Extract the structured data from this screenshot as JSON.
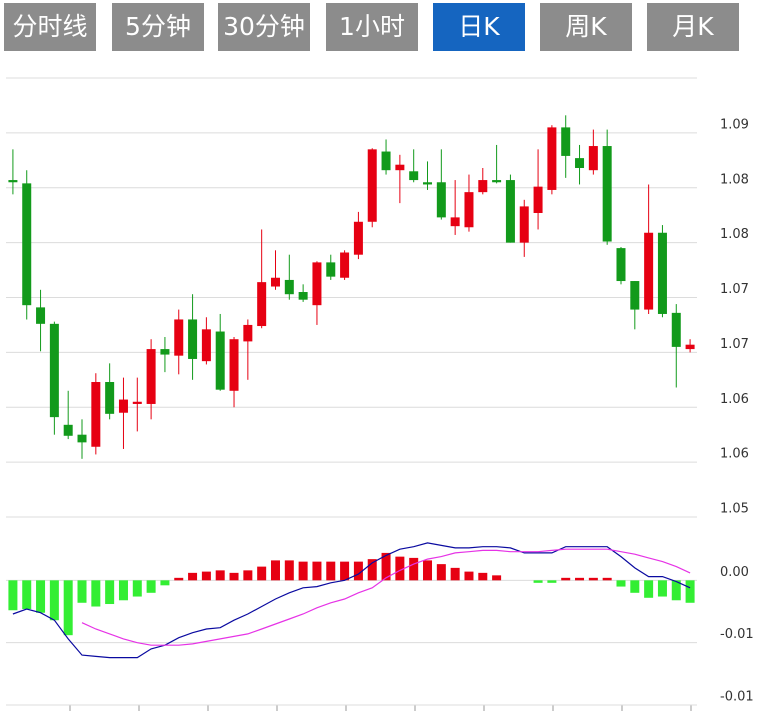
{
  "tabs": [
    "分时线",
    "5分钟",
    "30分钟",
    "1小时",
    "日K",
    "周K",
    "月K"
  ],
  "active_tab": 4,
  "chart_data": [
    {
      "type": "candlestick",
      "up_color": "#e60012",
      "down_color": "#129a1b",
      "open": [
        1.0832,
        1.0829,
        1.0716,
        1.0701,
        1.0609,
        1.06,
        1.0589,
        1.0648,
        1.062,
        1.0628,
        1.0628,
        1.0678,
        1.0672,
        1.0705,
        1.0667,
        1.0694,
        1.064,
        1.0685,
        1.0699,
        1.0735,
        1.0741,
        1.073,
        1.0718,
        1.0757,
        1.0743,
        1.0764,
        1.0794,
        1.0858,
        1.0841,
        1.084,
        1.083,
        1.083,
        1.079,
        1.0789,
        1.0821,
        1.0832,
        1.0832,
        1.0775,
        1.0802,
        1.0823,
        1.088,
        1.0852,
        1.0841,
        1.0863,
        1.077,
        1.074,
        1.0714,
        1.0784,
        1.0711,
        1.0678
      ],
      "close": [
        1.083,
        1.0718,
        1.0701,
        1.0616,
        1.0599,
        1.0593,
        1.0648,
        1.0619,
        1.0632,
        1.063,
        1.0678,
        1.0673,
        1.0705,
        1.0669,
        1.0696,
        1.0641,
        1.0687,
        1.07,
        1.0739,
        1.0743,
        1.0728,
        1.0723,
        1.0757,
        1.0744,
        1.0766,
        1.0794,
        1.086,
        1.0841,
        1.0846,
        1.0832,
        1.0828,
        1.0798,
        1.0798,
        1.0821,
        1.0832,
        1.083,
        1.0775,
        1.0808,
        1.0826,
        1.088,
        1.0854,
        1.0843,
        1.0863,
        1.0776,
        1.074,
        1.0714,
        1.0784,
        1.071,
        1.068,
        1.0682
      ],
      "high": [
        1.086,
        1.0841,
        1.0732,
        1.0703,
        1.064,
        1.0614,
        1.0656,
        1.0665,
        1.0652,
        1.0652,
        1.0687,
        1.0689,
        1.0714,
        1.0728,
        1.0707,
        1.071,
        1.0689,
        1.0705,
        1.0787,
        1.0768,
        1.0764,
        1.0737,
        1.0758,
        1.0764,
        1.0768,
        1.0803,
        1.0861,
        1.0869,
        1.0855,
        1.086,
        1.0849,
        1.086,
        1.0832,
        1.0837,
        1.0843,
        1.0864,
        1.0837,
        1.0814,
        1.086,
        1.0882,
        1.0891,
        1.0864,
        1.0878,
        1.0878,
        1.0771,
        1.074,
        1.0828,
        1.0791,
        1.0719,
        1.0687
      ],
      "low": [
        1.0819,
        1.0705,
        1.0676,
        1.06,
        1.0596,
        1.0578,
        1.0582,
        1.0614,
        1.0587,
        1.0603,
        1.0614,
        1.0657,
        1.0655,
        1.065,
        1.0664,
        1.064,
        1.0625,
        1.065,
        1.0697,
        1.0732,
        1.0723,
        1.0721,
        1.07,
        1.0741,
        1.0741,
        1.076,
        1.0789,
        1.0837,
        1.0811,
        1.083,
        1.0823,
        1.0796,
        1.0782,
        1.0785,
        1.0819,
        1.0829,
        1.0775,
        1.0762,
        1.0787,
        1.0819,
        1.0834,
        1.0828,
        1.0837,
        1.0773,
        1.0737,
        1.0696,
        1.071,
        1.0707,
        1.0643,
        1.0675
      ],
      "ylim": [
        1.0525,
        1.0925
      ],
      "yticks": [
        {
          "value": 1.0875,
          "label": "1.09"
        },
        {
          "value": 1.0825,
          "label": "1.08"
        },
        {
          "value": 1.0775,
          "label": "1.08"
        },
        {
          "value": 1.0725,
          "label": "1.07"
        },
        {
          "value": 1.0675,
          "label": "1.07"
        },
        {
          "value": 1.0625,
          "label": "1.06"
        },
        {
          "value": 1.0575,
          "label": "1.06"
        },
        {
          "value": 1.0525,
          "label": "1.05"
        }
      ],
      "grid": true
    },
    {
      "type": "macd",
      "up_color": "#e60012",
      "down_color": "#33ee33",
      "dif_color": "#0a0aa0",
      "dea_color": "#e633e6",
      "histogram": [
        -0.0024,
        -0.0023,
        -0.0026,
        -0.0032,
        -0.0044,
        -0.0018,
        -0.0021,
        -0.0019,
        -0.0016,
        -0.0013,
        -0.001,
        -0.0004,
        0.0002,
        0.0006,
        0.0007,
        0.0008,
        0.0006,
        0.0008,
        0.0011,
        0.0016,
        0.0016,
        0.0015,
        0.0015,
        0.0015,
        0.0015,
        0.0015,
        0.0017,
        0.0022,
        0.0019,
        0.0018,
        0.0016,
        0.0013,
        0.001,
        0.0007,
        0.0006,
        0.0004,
        0,
        0,
        -0.0002,
        -0.0002,
        0.0002,
        0.0002,
        0.0002,
        0.0002,
        -0.0005,
        -0.001,
        -0.0014,
        -0.0013,
        -0.0016,
        -0.0018
      ],
      "dif": [
        -0.0027,
        -0.0023,
        -0.0026,
        -0.0032,
        -0.0047,
        -0.006,
        -0.0061,
        -0.0062,
        -0.0062,
        -0.0062,
        -0.0055,
        -0.0052,
        -0.0046,
        -0.0042,
        -0.0039,
        -0.0038,
        -0.0032,
        -0.0027,
        -0.0021,
        -0.0015,
        -0.001,
        -0.0006,
        -0.0005,
        -0.0002,
        0,
        0.0005,
        0.0014,
        0.002,
        0.0025,
        0.0027,
        0.003,
        0.0028,
        0.0026,
        0.0026,
        0.0027,
        0.0027,
        0.0026,
        0.0022,
        0.0022,
        0.0022,
        0.0027,
        0.0027,
        0.0027,
        0.0027,
        0.0019,
        0.001,
        0.0003,
        0.0003,
        -0.0001,
        -0.0006
      ],
      "dea": [
        null,
        null,
        null,
        null,
        null,
        -0.0034,
        -0.0039,
        -0.0043,
        -0.0047,
        -0.005,
        -0.0052,
        -0.0052,
        -0.0052,
        -0.0051,
        -0.0049,
        -0.0047,
        -0.0045,
        -0.0043,
        -0.0039,
        -0.0035,
        -0.0031,
        -0.0027,
        -0.0022,
        -0.0018,
        -0.0015,
        -0.001,
        -0.0006,
        0.0002,
        0.0008,
        0.0013,
        0.0017,
        0.0019,
        0.0022,
        0.0023,
        0.0024,
        0.0024,
        0.0023,
        0.0023,
        0.0023,
        0.0024,
        0.0025,
        0.0025,
        0.0025,
        0.0025,
        0.0023,
        0.0021,
        0.0018,
        0.0015,
        0.0011,
        0.0006
      ],
      "ylim": [
        -0.01,
        0.005
      ],
      "yticks": [
        {
          "value": 0,
          "label": "0.00"
        },
        {
          "value": -0.005,
          "label": "-0.01"
        },
        {
          "value": -0.01,
          "label": "-0.01"
        }
      ],
      "grid": true
    }
  ]
}
